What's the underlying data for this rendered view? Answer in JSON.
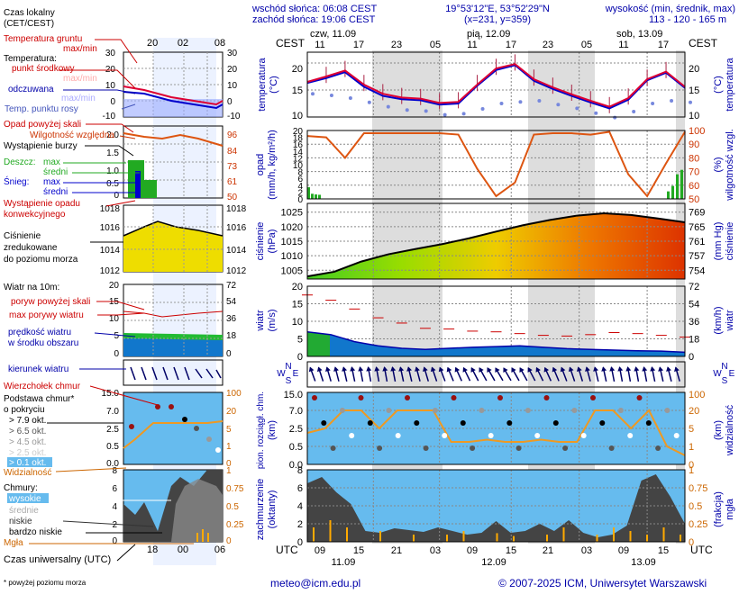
{
  "header": {
    "sunrise": "wschód słońca: 06:08 CEST",
    "sunset": "zachód słońca: 19:06 CEST",
    "coords": "19°53'12\"E, 53°52'29\"N",
    "grid": "(x=231, y=359)",
    "elev_label": "wysokość (min, średnik, max)",
    "elev_values": "113 - 120 - 165 m"
  },
  "legend": {
    "local_time": "Czas lokalny",
    "local_time_zone": "(CET/CEST)",
    "local_hours": [
      "20",
      "02",
      "08"
    ],
    "ground_temp": "Temperatura gruntu",
    "max_min": "max/min",
    "temperature": "Temperatura:",
    "midpoint": "punkt środkowy",
    "max_min2": "max/min",
    "felt": "odczuwana",
    "max_min3": "max/min",
    "dew_point": "Temp. punktu rosy",
    "precip_above": "Opad powyżej skali",
    "humidity": "Wilgotność względna",
    "storm": "Wystąpienie burzy",
    "rain": "Deszcz:",
    "snow": "Śnieg:",
    "max": "max",
    "mean": "średni",
    "max2": "max",
    "mean2": "średni",
    "conv_precip_1": "Wystąpienie opadu",
    "conv_precip_2": "konwekcyjnego",
    "pressure_1": "Ciśnienie",
    "pressure_2": "zredukowane",
    "pressure_3": "do poziomu morza",
    "wind_10m": "Wiatr na 10m:",
    "gust_above": "poryw powyżej skali",
    "max_gust": "max porywy wiatru",
    "wind_speed_1": "prędkość wiatru",
    "wind_speed_2": "w środku obszaru",
    "wind_dir": "kierunek wiatru",
    "cloud_top": "Wierzchołek chmur",
    "cloud_base_1": "Podstawa chmur*",
    "cloud_base_2": "o pokryciu",
    "okt": [
      "> 7.9 okt.",
      "> 6.5 okt.",
      "> 4.5 okt.",
      "> 2.5 okt.",
      "> 0.1 okt."
    ],
    "visibility": "Widzialność",
    "clouds": "Chmury:",
    "cloud_high": "wysokie",
    "cloud_mid": "średnie",
    "cloud_low": "niskie",
    "cloud_vlow": "bardzo niskie",
    "fog": "Mgła",
    "utc": "Czas uniwersalny (UTC)",
    "utc_hours": [
      "18",
      "00",
      "06"
    ],
    "footnote": "* powyżej poziomu morza"
  },
  "legend_axes": {
    "temp_left": [
      "30",
      "20",
      "10",
      "0",
      "-10"
    ],
    "temp_right": [
      "30",
      "20",
      "10",
      "0",
      "-10"
    ],
    "precip_left": [
      "2.0",
      "1.5",
      "1.0",
      "0.5",
      "0"
    ],
    "humid_right": [
      "96",
      "84",
      "73",
      "61",
      "50"
    ],
    "press_left": [
      "1018",
      "1016",
      "1014",
      "1012"
    ],
    "press_right": [
      "1018",
      "1016",
      "1014",
      "1012"
    ],
    "wind_left": [
      "20",
      "15",
      "10",
      "5",
      "0"
    ],
    "wind_right": [
      "72",
      "54",
      "36",
      "18",
      "0"
    ],
    "cloud_left": [
      "15.0",
      "7.0",
      "2.5",
      "0.5",
      "0.0"
    ],
    "vis_right": [
      "100",
      "20",
      "5",
      "1",
      "0"
    ],
    "cover_left": [
      "8",
      "6",
      "4",
      "2",
      "0"
    ],
    "cover_right": [
      "1",
      "0.75",
      "0.5",
      "0.25",
      "0"
    ]
  },
  "main": {
    "cest_left": "CEST",
    "cest_right": "CEST",
    "utc_left": "UTC",
    "utc_right": "UTC",
    "day_labels": [
      "czw, 11.09",
      "pią, 12.09",
      "sob, 13.09"
    ],
    "local_hours": [
      "11",
      "17",
      "23",
      "05",
      "11",
      "17",
      "23",
      "05",
      "11",
      "17"
    ],
    "utc_hours": [
      "09",
      "15",
      "21",
      "03",
      "09",
      "15",
      "21",
      "03",
      "09",
      "15"
    ],
    "utc_dates": [
      "11.09",
      "12.09",
      "13.09"
    ],
    "axis_titles": {
      "temp_l1": "temperatura",
      "temp_l2": "(°C)",
      "temp_r1": "temperatura",
      "temp_r2": "(°C)",
      "precip_l1": "opad",
      "precip_l2": "(mm/h, kg/m²/h)",
      "humid_r1": "wilgotność wzgl.",
      "humid_r2": "(%)",
      "press_l1": "ciśnienie",
      "press_l2": "(hPa)",
      "press_r1": "ciśnienie",
      "press_r2": "(mm Hg)",
      "wind_l1": "wiatr",
      "wind_l2": "(m/s)",
      "wind_r1": "wiatr",
      "wind_r2": "(km/h)",
      "cloud_l1": "pion. rozciągł. chm.",
      "cloud_l2": "(km)",
      "vis_r1": "widzialność",
      "vis_r2": "(km)",
      "cover_l1": "zachmurzenie",
      "cover_l2": "(oktanty)",
      "fog_r1": "mgła",
      "fog_r2": "(frakcja)"
    },
    "ticks": {
      "temp_left": [
        "20",
        "15",
        "10"
      ],
      "temp_right": [
        "20",
        "15",
        "10"
      ],
      "precip_left": [
        "20",
        "18",
        "16",
        "14",
        "12",
        "10",
        "8",
        "6",
        "4",
        "2",
        "0"
      ],
      "humid_right": [
        "100",
        "90",
        "80",
        "70",
        "60",
        "50"
      ],
      "press_left": [
        "1025",
        "1020",
        "1015",
        "1010",
        "1005"
      ],
      "press_right": [
        "769",
        "765",
        "761",
        "757",
        "754"
      ],
      "wind_left": [
        "20",
        "15",
        "10",
        "5",
        "0"
      ],
      "wind_right": [
        "72",
        "54",
        "36",
        "18",
        "0"
      ],
      "cloud_left": [
        "15.0",
        "7.0",
        "2.5",
        "0.5",
        "0.0"
      ],
      "vis_right": [
        "100",
        "20",
        "5",
        "1",
        "0"
      ],
      "cover_left": [
        "8",
        "6",
        "4",
        "2",
        "0"
      ],
      "fog_right": [
        "1",
        "0.75",
        "0.5",
        "0.25",
        "0"
      ]
    },
    "wind_compass": {
      "n": "N",
      "w": "W",
      "e": "E",
      "s": "S"
    }
  },
  "footer": {
    "email": "meteo@icm.edu.pl",
    "copyright": "© 2007-2025 ICM, Uniwersytet Warszawski"
  },
  "colors": {
    "temp": "#dd0033",
    "felt": "#0000cc",
    "dew": "#7788dd",
    "humidity": "#dd5511",
    "rain": "#22aa22",
    "pressure_line": "#000000",
    "wind_area": "#1177cc",
    "gust": "#cc0000",
    "cloud_bg": "#66bbee",
    "visibility": "#ee9922",
    "night_shade": "#dddddd"
  },
  "chart_data": [
    {
      "type": "line",
      "name": "temperature",
      "x_hours": [
        0,
        3,
        6,
        9,
        12,
        15,
        18,
        21,
        24,
        27,
        30,
        33,
        36,
        39,
        42,
        45,
        48,
        51,
        54,
        57,
        60
      ],
      "series": [
        {
          "values": [
            16.5,
            17.5,
            18.6,
            16.0,
            14.3,
            13.6,
            13.4,
            12.6,
            12.8,
            16.0,
            19.0,
            19.8,
            17.0,
            15.5,
            14.2,
            13.0,
            11.9,
            13.5,
            17.0,
            18.4,
            15.6
          ]
        },
        {
          "values": [
            16.3,
            17.2,
            18.3,
            15.6,
            13.9,
            13.3,
            13.1,
            12.3,
            12.5,
            15.8,
            18.7,
            19.6,
            16.7,
            15.2,
            13.9,
            12.7,
            11.6,
            13.2,
            16.8,
            18.2,
            15.4
          ]
        },
        {
          "values": [
            15.8,
            15.5,
            15.0,
            14.2,
            13.4,
            12.8,
            12.6,
            11.9,
            12.1,
            13.0,
            14.0,
            14.3,
            14.5,
            13.8,
            13.1,
            12.2,
            11.4,
            12.5,
            14.0,
            14.5,
            14.2
          ]
        }
      ],
      "ylim": [
        10,
        22
      ]
    },
    {
      "type": "area",
      "name": "precipitation_humidity",
      "humidity": [
        96,
        95,
        80,
        98,
        98,
        98,
        98,
        98,
        97,
        72,
        52,
        62,
        97,
        98,
        98,
        97,
        99,
        68,
        52,
        76,
        99
      ],
      "precip_first_bars": [
        3.4,
        1.5,
        1.3,
        1.2
      ],
      "precip_last_bars": [
        2.2,
        3.8,
        7.2,
        8.5
      ],
      "ylim": [
        0,
        20
      ]
    },
    {
      "type": "area",
      "name": "pressure",
      "values": [
        1002.9,
        1004.5,
        1008.0,
        1010.5,
        1012.3,
        1014.0,
        1016.0,
        1018.3,
        1020.5,
        1022.3,
        1023.8,
        1024.6,
        1024.0,
        1022.8,
        1021.5
      ],
      "ylim": [
        1002,
        1028
      ]
    },
    {
      "type": "area",
      "name": "wind",
      "speed": [
        7.0,
        6.2,
        4.2,
        3.0,
        2.3,
        2.0,
        2.3,
        2.6,
        2.8,
        3.0,
        2.6,
        2.2,
        2.0,
        1.8,
        1.6,
        1.5,
        1.2
      ],
      "gust": [
        17.5,
        16.0,
        13.5,
        11.0,
        9.5,
        8.0,
        7.8,
        7.2,
        7.0,
        6.5,
        6.0,
        5.8,
        6.2,
        6.8,
        6.5,
        6.0,
        5.5
      ],
      "ylim": [
        0,
        20
      ]
    },
    {
      "type": "line",
      "name": "visibility",
      "values": [
        4.0,
        5.5,
        20.0,
        20.0,
        19.0,
        20.0,
        20.0,
        20.0,
        2.0,
        2.0,
        2.5,
        2.0,
        2.0,
        2.5,
        2.0,
        2.0,
        20.0,
        20.0,
        19.0,
        20.0,
        1.0,
        0.5
      ],
      "ylim": [
        0,
        100
      ]
    },
    {
      "type": "area",
      "name": "cloud_cover",
      "values": [
        6.5,
        7.2,
        5.5,
        4.2,
        1.2,
        1.0,
        1.5,
        1.3,
        1.1,
        1.6,
        1.2,
        0.8,
        1.0,
        2.3,
        1.0,
        1.2,
        2.0,
        1.2,
        2.4,
        1.0,
        0.5,
        0.8,
        1.8,
        6.8,
        7.5,
        5.0,
        2.0
      ],
      "fog": [
        0.2,
        0.3,
        0.2,
        0.0,
        0.15,
        0.0,
        0.1,
        0.0,
        0.1,
        0.15,
        0.0,
        0.12,
        0.08,
        0.0,
        0.1,
        0.2,
        0.0,
        0.1,
        0.2,
        0.15,
        0.1,
        0.2,
        0.1
      ],
      "ylim": [
        0,
        8
      ]
    }
  ]
}
